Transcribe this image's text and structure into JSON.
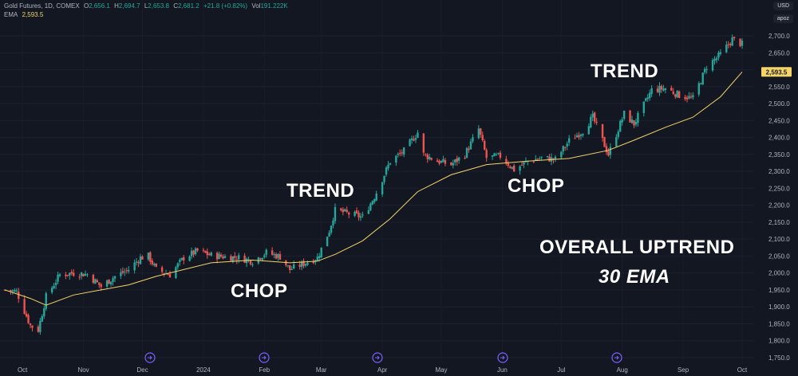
{
  "legend": {
    "symbol": "Gold Futures, 1D, COMEX",
    "o_label": "O",
    "o_value": "2,656.1",
    "h_label": "H",
    "h_value": "2,694.7",
    "l_label": "L",
    "l_value": "2,653.8",
    "c_label": "C",
    "c_value": "2,681.2",
    "change": "+21.8 (+0.82%)",
    "vol_label": "Vol",
    "vol_value": "191.222K",
    "ema_label": "EMA",
    "ema_value": "2,593.5"
  },
  "top_right": {
    "currency": "USD",
    "button": "apoz"
  },
  "annotations": {
    "chop1": "CHOP",
    "trend1": "TREND",
    "chop2": "CHOP",
    "trend2": "TREND",
    "overall": "OVERALL UPTREND",
    "ema_note": "30 EMA"
  },
  "colors": {
    "up": "#26a69a",
    "down": "#ef5350",
    "ema": "#f5d469",
    "background": "#131722",
    "event_marker": "#7b61ff"
  },
  "chart_data": {
    "type": "candlestick",
    "title": "Gold Futures, 1D, COMEX",
    "ylim": [
      1750,
      2725
    ],
    "yticks": [
      1750,
      1800,
      1850,
      1900,
      1950,
      2000,
      2050,
      2100,
      2150,
      2200,
      2250,
      2300,
      2350,
      2400,
      2450,
      2500,
      2550,
      2600,
      2650,
      2700
    ],
    "ytick_labels": [
      "1,750.0",
      "1,800.0",
      "1,850.0",
      "1,900.0",
      "1,950.0",
      "2,000.0",
      "2,050.0",
      "2,100.0",
      "2,150.0",
      "2,200.0",
      "2,250.0",
      "2,300.0",
      "2,350.0",
      "2,400.0",
      "2,450.0",
      "2,500.0",
      "2,550.0",
      "2,600.0",
      "2,650.0",
      "2,700.0"
    ],
    "xtick_labels": [
      "Oct",
      "Nov",
      "Dec",
      "2024",
      "Feb",
      "Mar",
      "Apr",
      "May",
      "Jun",
      "Jul",
      "Aug",
      "Sep",
      "Oct"
    ],
    "last_ema_label": "2,593.5",
    "close_path": [
      [
        "2023-09-22",
        1950
      ],
      [
        "2023-09-28",
        1945
      ],
      [
        "2023-10-05",
        1845
      ],
      [
        "2023-10-09",
        1832
      ],
      [
        "2023-10-13",
        1930
      ],
      [
        "2023-10-20",
        1995
      ],
      [
        "2023-10-27",
        2000
      ],
      [
        "2023-11-03",
        1996
      ],
      [
        "2023-11-10",
        1960
      ],
      [
        "2023-11-17",
        1990
      ],
      [
        "2023-11-24",
        2010
      ],
      [
        "2023-11-30",
        2045
      ],
      [
        "2023-12-04",
        2050
      ],
      [
        "2023-12-08",
        2010
      ],
      [
        "2023-12-15",
        1995
      ],
      [
        "2023-12-22",
        2045
      ],
      [
        "2023-12-29",
        2065
      ],
      [
        "2024-01-05",
        2052
      ],
      [
        "2024-01-12",
        2048
      ],
      [
        "2024-01-19",
        2045
      ],
      [
        "2024-01-26",
        2035
      ],
      [
        "2024-02-02",
        2060
      ],
      [
        "2024-02-09",
        2048
      ],
      [
        "2024-02-14",
        2010
      ],
      [
        "2024-02-21",
        2028
      ],
      [
        "2024-02-28",
        2045
      ],
      [
        "2024-03-05",
        2125
      ],
      [
        "2024-03-08",
        2185
      ],
      [
        "2024-03-15",
        2175
      ],
      [
        "2024-03-22",
        2165
      ],
      [
        "2024-03-28",
        2225
      ],
      [
        "2024-04-05",
        2330
      ],
      [
        "2024-04-12",
        2360
      ],
      [
        "2024-04-19",
        2415
      ],
      [
        "2024-04-22",
        2350
      ],
      [
        "2024-04-29",
        2330
      ],
      [
        "2024-05-06",
        2320
      ],
      [
        "2024-05-13",
        2350
      ],
      [
        "2024-05-20",
        2425
      ],
      [
        "2024-05-24",
        2340
      ],
      [
        "2024-05-31",
        2345
      ],
      [
        "2024-06-07",
        2305
      ],
      [
        "2024-06-14",
        2330
      ],
      [
        "2024-06-21",
        2340
      ],
      [
        "2024-06-28",
        2335
      ],
      [
        "2024-07-05",
        2390
      ],
      [
        "2024-07-12",
        2420
      ],
      [
        "2024-07-17",
        2460
      ],
      [
        "2024-07-25",
        2350
      ],
      [
        "2024-08-02",
        2470
      ],
      [
        "2024-08-07",
        2440
      ],
      [
        "2024-08-16",
        2540
      ],
      [
        "2024-08-23",
        2545
      ],
      [
        "2024-08-30",
        2525
      ],
      [
        "2024-09-06",
        2515
      ],
      [
        "2024-09-13",
        2610
      ],
      [
        "2024-09-20",
        2645
      ],
      [
        "2024-09-26",
        2690
      ],
      [
        "2024-10-01",
        2675
      ]
    ],
    "ema_path": [
      [
        "2023-09-22",
        1950
      ],
      [
        "2023-10-05",
        1925
      ],
      [
        "2023-10-13",
        1905
      ],
      [
        "2023-10-27",
        1935
      ],
      [
        "2023-11-10",
        1950
      ],
      [
        "2023-11-24",
        1965
      ],
      [
        "2023-12-08",
        1990
      ],
      [
        "2023-12-22",
        2010
      ],
      [
        "2024-01-05",
        2030
      ],
      [
        "2024-01-26",
        2038
      ],
      [
        "2024-02-14",
        2030
      ],
      [
        "2024-02-28",
        2035
      ],
      [
        "2024-03-08",
        2055
      ],
      [
        "2024-03-22",
        2095
      ],
      [
        "2024-04-05",
        2160
      ],
      [
        "2024-04-19",
        2240
      ],
      [
        "2024-05-06",
        2290
      ],
      [
        "2024-05-24",
        2320
      ],
      [
        "2024-06-14",
        2330
      ],
      [
        "2024-07-05",
        2338
      ],
      [
        "2024-07-25",
        2362
      ],
      [
        "2024-08-07",
        2392
      ],
      [
        "2024-08-23",
        2430
      ],
      [
        "2024-09-06",
        2460
      ],
      [
        "2024-09-20",
        2520
      ],
      [
        "2024-10-01",
        2593.5
      ]
    ]
  }
}
